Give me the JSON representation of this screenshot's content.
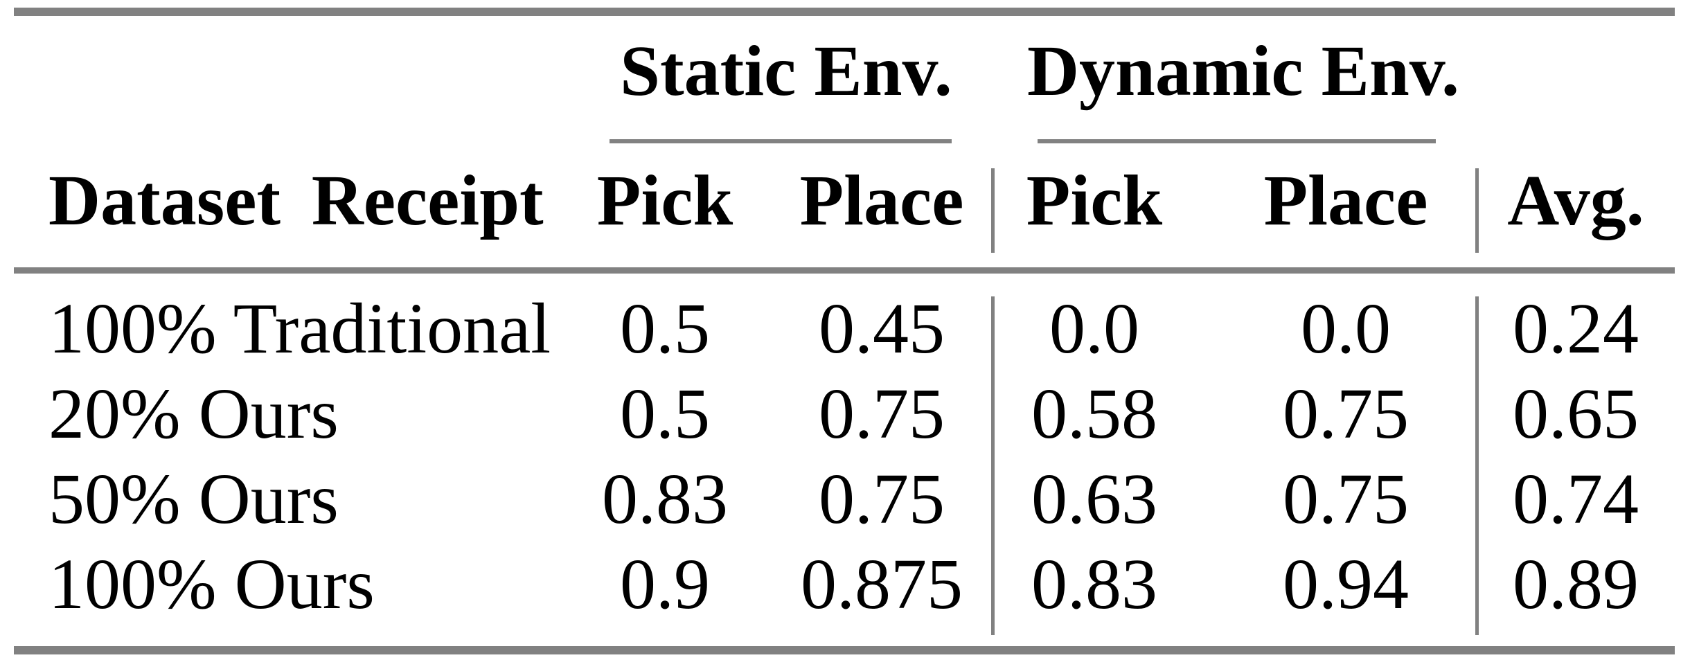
{
  "colors": {
    "rule": "#818181",
    "text": "#000000",
    "background": "#ffffff"
  },
  "table": {
    "stub_header": "Dataset Receipt",
    "groups": [
      {
        "label": "Static Env.",
        "columns": [
          "Pick",
          "Place"
        ]
      },
      {
        "label": "Dynamic Env.",
        "columns": [
          "Pick",
          "Place"
        ]
      }
    ],
    "avg_header": "Avg.",
    "rows": [
      {
        "label": "100% Traditional",
        "static_pick": "0.5",
        "static_place": "0.45",
        "dynamic_pick": "0.0",
        "dynamic_place": "0.0",
        "avg": "0.24"
      },
      {
        "label": "20% Ours",
        "static_pick": "0.5",
        "static_place": "0.75",
        "dynamic_pick": "0.58",
        "dynamic_place": "0.75",
        "avg": "0.65"
      },
      {
        "label": "50% Ours",
        "static_pick": "0.83",
        "static_place": "0.75",
        "dynamic_pick": "0.63",
        "dynamic_place": "0.75",
        "avg": "0.74"
      },
      {
        "label": "100% Ours",
        "static_pick": "0.9",
        "static_place": "0.875",
        "dynamic_pick": "0.83",
        "dynamic_place": "0.94",
        "avg": "0.89"
      }
    ]
  },
  "chart_data": {
    "type": "table",
    "columns": [
      "Dataset Receipt",
      "Static Env. Pick",
      "Static Env. Place",
      "Dynamic Env. Pick",
      "Dynamic Env. Place",
      "Avg."
    ],
    "rows": [
      [
        "100% Traditional",
        0.5,
        0.45,
        0.0,
        0.0,
        0.24
      ],
      [
        "20% Ours",
        0.5,
        0.75,
        0.58,
        0.75,
        0.65
      ],
      [
        "50% Ours",
        0.83,
        0.75,
        0.63,
        0.75,
        0.74
      ],
      [
        "100% Ours",
        0.9,
        0.875,
        0.83,
        0.94,
        0.89
      ]
    ]
  }
}
